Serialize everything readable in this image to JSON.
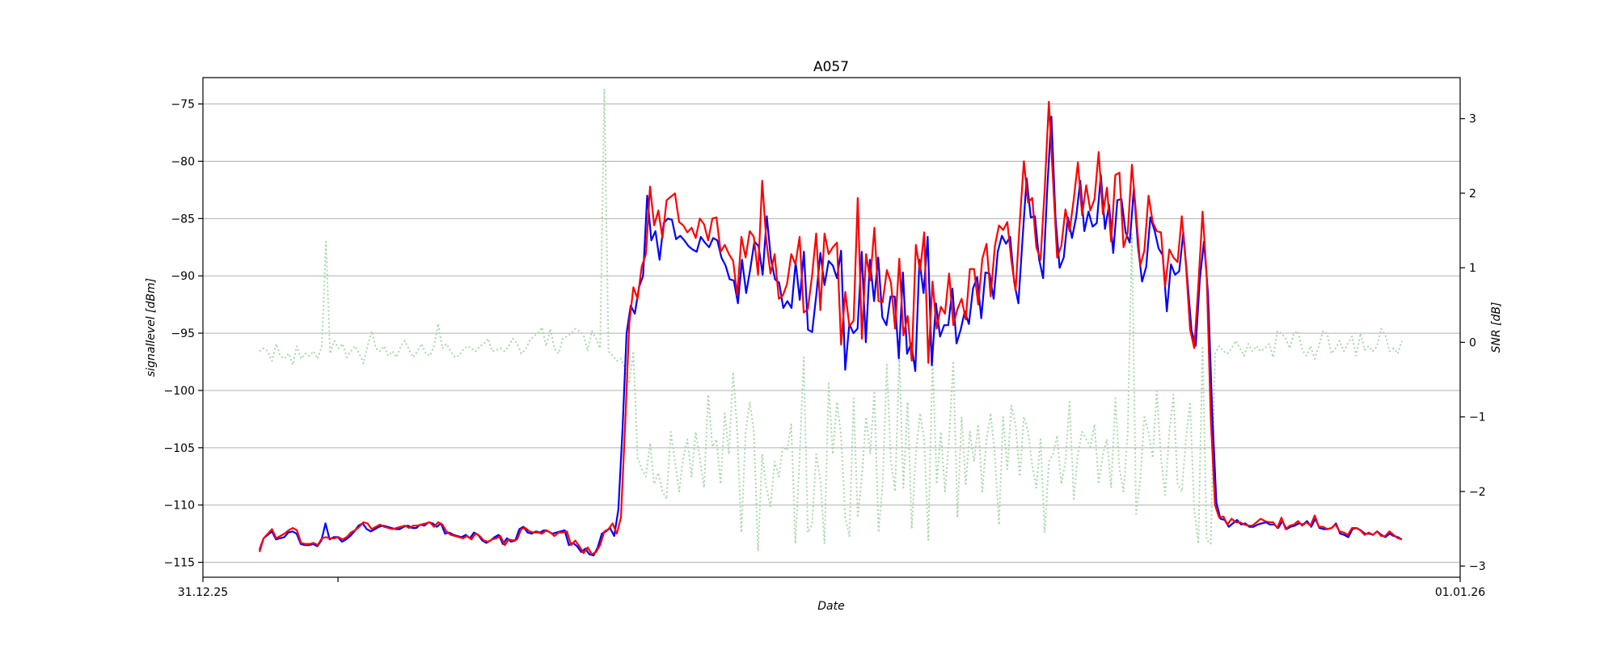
{
  "chart_data": {
    "type": "line",
    "title": "A057",
    "xlabel": "Date",
    "ylabel": "signallevel [dBm]",
    "y2label": "SNR [dB]",
    "x_tick_labels": [
      "31.12.25",
      "01.01.26"
    ],
    "ylim": [
      -116.3,
      -72.7
    ],
    "y2lim": [
      -3.15,
      3.55
    ],
    "y_ticks": [
      -115,
      -110,
      -105,
      -100,
      -95,
      -90,
      -85,
      -80,
      -75
    ],
    "y2_ticks": [
      -3,
      -2,
      -1,
      0,
      1,
      2,
      3
    ],
    "grid": "horizontal",
    "series": [
      {
        "color": "#0000ff",
        "axis": "left",
        "values": [
          -113.9,
          -112.9,
          -112.6,
          -112.3,
          -113.0,
          -112.9,
          -112.8,
          -112.4,
          -112.3,
          -112.5,
          -113.4,
          -113.5,
          -113.5,
          -113.4,
          -113.6,
          -113.1,
          -111.6,
          -113.0,
          -112.8,
          -112.8,
          -113.2,
          -113.0,
          -112.7,
          -112.3,
          -111.8,
          -111.6,
          -112.1,
          -112.3,
          -112.1,
          -111.9,
          -111.8,
          -111.9,
          -112.0,
          -112.1,
          -112.1,
          -111.9,
          -111.8,
          -112.0,
          -112.0,
          -111.7,
          -111.8,
          -111.5,
          -111.6,
          -111.9,
          -111.6,
          -112.5,
          -112.4,
          -112.6,
          -112.7,
          -112.8,
          -112.6,
          -112.9,
          -112.4,
          -112.6,
          -113.1,
          -113.3,
          -113.1,
          -112.8,
          -112.6,
          -113.4,
          -112.9,
          -113.2,
          -113.1,
          -112.1,
          -111.9,
          -112.4,
          -112.5,
          -112.3,
          -112.4,
          -112.2,
          -112.3,
          -112.5,
          -112.4,
          -112.3,
          -112.2,
          -113.5,
          -113.3,
          -113.6,
          -114.1,
          -113.8,
          -114.3,
          -114.4,
          -113.7,
          -112.5,
          -112.3,
          -112.0,
          -112.7,
          -110.4,
          -103.5,
          -95.0,
          -92.6,
          -93.3,
          -91.0,
          -90.0,
          -83.0,
          -86.9,
          -86.1,
          -88.6,
          -85.4,
          -85.0,
          -85.1,
          -86.8,
          -86.5,
          -86.9,
          -87.4,
          -87.7,
          -87.9,
          -86.6,
          -87.1,
          -87.5,
          -86.7,
          -86.9,
          -88.4,
          -89.1,
          -90.3,
          -90.4,
          -92.4,
          -88.6,
          -91.5,
          -89.4,
          -87.0,
          -87.4,
          -89.9,
          -84.8,
          -88.5,
          -90.3,
          -90.6,
          -92.8,
          -92.2,
          -92.8,
          -88.8,
          -92.1,
          -87.9,
          -94.7,
          -94.9,
          -91.7,
          -88.0,
          -90.8,
          -88.7,
          -89.1,
          -90.2,
          -87.8,
          -98.2,
          -94.2,
          -95.0,
          -94.6,
          -87.9,
          -95.8,
          -88.6,
          -92.2,
          -88.4,
          -93.6,
          -94.3,
          -91.8,
          -91.8,
          -97.2,
          -89.7,
          -96.8,
          -95.9,
          -98.3,
          -88.6,
          -91.5,
          -86.6,
          -97.8,
          -92.4,
          -95.3,
          -94.3,
          -94.3,
          -91.1,
          -95.9,
          -94.7,
          -93.1,
          -94.2,
          -91.1,
          -90.1,
          -93.7,
          -89.7,
          -89.8,
          -92.0,
          -87.9,
          -86.5,
          -87.2,
          -86.6,
          -90.6,
          -92.4,
          -86.8,
          -81.5,
          -84.9,
          -84.8,
          -88.5,
          -90.2,
          -82.4,
          -76.1,
          -84.9,
          -89.3,
          -88.4,
          -84.9,
          -86.7,
          -84.9,
          -81.7,
          -86.1,
          -84.4,
          -85.7,
          -85.4,
          -81.2,
          -85.9,
          -83.8,
          -88.0,
          -83.4,
          -83.3,
          -86.2,
          -87.1,
          -82.4,
          -87.4,
          -90.5,
          -89.2,
          -84.9,
          -86.0,
          -87.6,
          -88.2,
          -93.1,
          -89.0,
          -89.9,
          -89.6,
          -86.2,
          -90.4,
          -94.8,
          -96.1,
          -90.3,
          -87.0,
          -91.6,
          -102.0,
          -109.8,
          -111.2,
          -111.3,
          -111.9,
          -111.6,
          -111.3,
          -111.7,
          -111.6,
          -111.9,
          -111.9,
          -111.7,
          -111.6,
          -111.5,
          -111.7,
          -111.7,
          -112.0,
          -111.4,
          -112.1,
          -111.9,
          -111.8,
          -111.6,
          -111.7,
          -111.4,
          -111.9,
          -111.2,
          -112.0,
          -112.1,
          -112.1,
          -112.0,
          -111.6,
          -112.5,
          -112.6,
          -112.8,
          -112.1,
          -112.0,
          -112.2,
          -112.5,
          -112.5,
          -112.6,
          -112.3,
          -112.6,
          -112.8,
          -112.5,
          -112.7,
          -112.8,
          -113.0
        ]
      },
      {
        "color": "#ff0000",
        "axis": "left",
        "values": [
          -114.1,
          -112.9,
          -112.5,
          -112.1,
          -112.9,
          -112.7,
          -112.5,
          -112.2,
          -112.0,
          -112.2,
          -113.3,
          -113.4,
          -113.4,
          -113.3,
          -113.5,
          -112.9,
          -112.8,
          -112.9,
          -112.9,
          -112.8,
          -113.0,
          -112.8,
          -112.4,
          -112.2,
          -111.9,
          -111.5,
          -111.6,
          -112.1,
          -111.9,
          -111.7,
          -111.9,
          -112.0,
          -112.1,
          -112.0,
          -111.9,
          -111.8,
          -112.0,
          -111.8,
          -111.8,
          -111.7,
          -111.6,
          -111.5,
          -111.9,
          -111.5,
          -111.7,
          -112.3,
          -112.6,
          -112.7,
          -112.8,
          -112.9,
          -112.7,
          -113.0,
          -112.5,
          -112.7,
          -113.1,
          -113.2,
          -113.0,
          -112.9,
          -112.7,
          -113.5,
          -113.0,
          -113.1,
          -113.0,
          -112.1,
          -112.0,
          -112.3,
          -112.4,
          -112.4,
          -112.5,
          -112.2,
          -112.4,
          -112.7,
          -112.4,
          -112.4,
          -112.3,
          -113.5,
          -113.1,
          -113.6,
          -114.2,
          -113.7,
          -114.3,
          -114.1,
          -113.5,
          -112.3,
          -112.1,
          -111.6,
          -112.5,
          -111.1,
          -103.0,
          -94.2,
          -91.0,
          -92.0,
          -89.2,
          -88.1,
          -82.2,
          -85.6,
          -84.3,
          -86.7,
          -83.4,
          -83.1,
          -82.8,
          -85.3,
          -85.6,
          -86.2,
          -85.8,
          -86.7,
          -85.0,
          -85.5,
          -86.9,
          -85.0,
          -84.9,
          -87.9,
          -87.3,
          -88.1,
          -88.7,
          -91.7,
          -86.6,
          -88.4,
          -86.1,
          -86.6,
          -89.9,
          -81.7,
          -87.0,
          -89.8,
          -88.1,
          -92.0,
          -91.7,
          -90.7,
          -88.1,
          -89.0,
          -86.6,
          -93.2,
          -92.9,
          -90.0,
          -86.3,
          -93.0,
          -86.3,
          -88.1,
          -87.5,
          -87.1,
          -96.0,
          -91.4,
          -94.4,
          -93.9,
          -83.2,
          -95.5,
          -88.1,
          -90.4,
          -85.8,
          -92.2,
          -92.3,
          -89.5,
          -90.6,
          -94.6,
          -88.5,
          -95.2,
          -93.5,
          -97.4,
          -87.3,
          -89.6,
          -86.2,
          -97.6,
          -90.5,
          -94.6,
          -92.7,
          -93.3,
          -89.8,
          -94.3,
          -92.9,
          -92.0,
          -93.8,
          -89.4,
          -89.4,
          -92.5,
          -88.5,
          -87.2,
          -91.8,
          -87.4,
          -85.6,
          -86.0,
          -85.3,
          -88.7,
          -91.3,
          -85.3,
          -80.0,
          -83.6,
          -83.2,
          -87.5,
          -88.6,
          -82.5,
          -74.8,
          -81.6,
          -88.4,
          -87.4,
          -84.2,
          -86.1,
          -83.3,
          -80.1,
          -84.7,
          -82.1,
          -84.3,
          -83.3,
          -79.2,
          -84.6,
          -82.3,
          -87.0,
          -81.2,
          -81.0,
          -87.5,
          -86.2,
          -80.3,
          -84.6,
          -89.1,
          -87.8,
          -83.0,
          -85.3,
          -86.1,
          -86.2,
          -90.9,
          -87.7,
          -88.4,
          -88.8,
          -84.8,
          -89.0,
          -94.7,
          -96.3,
          -90.8,
          -84.4,
          -90.0,
          -102.5,
          -110.0,
          -111.1,
          -111.0,
          -111.7,
          -111.2,
          -111.5,
          -111.5,
          -111.7,
          -111.8,
          -111.8,
          -111.5,
          -111.2,
          -111.4,
          -111.5,
          -111.5,
          -112.0,
          -111.1,
          -112.1,
          -111.8,
          -111.7,
          -111.4,
          -111.8,
          -111.5,
          -111.8,
          -110.9,
          -111.9,
          -111.9,
          -112.1,
          -112.0,
          -111.7,
          -112.3,
          -112.4,
          -112.6,
          -112.0,
          -112.0,
          -112.2,
          -112.6,
          -112.4,
          -112.6,
          -112.3,
          -112.7,
          -112.7,
          -112.3,
          -112.6,
          -112.9,
          -113.0
        ]
      },
      {
        "color": "#a6d8a6",
        "style": "dotted",
        "axis": "right",
        "values": [
          -0.12,
          -0.08,
          -0.12,
          -0.25,
          -0.02,
          -0.18,
          -0.22,
          -0.15,
          -0.3,
          -0.05,
          -0.22,
          -0.15,
          -0.18,
          -0.12,
          -0.22,
          -0.05,
          1.35,
          -0.15,
          0.02,
          -0.08,
          -0.02,
          -0.2,
          -0.12,
          -0.05,
          -0.15,
          -0.28,
          -0.05,
          0.15,
          -0.08,
          -0.12,
          -0.05,
          -0.18,
          -0.12,
          -0.2,
          -0.05,
          0.02,
          -0.1,
          -0.2,
          -0.12,
          -0.02,
          -0.15,
          -0.18,
          -0.05,
          0.25,
          -0.08,
          -0.02,
          -0.12,
          -0.2,
          -0.18,
          -0.1,
          -0.05,
          -0.08,
          -0.12,
          -0.05,
          -0.02,
          0.05,
          -0.12,
          -0.1,
          -0.08,
          -0.12,
          -0.05,
          0.05,
          -0.02,
          -0.15,
          -0.1,
          0.02,
          0.08,
          0.12,
          0.2,
          -0.05,
          0.18,
          -0.08,
          -0.15,
          0.05,
          0.08,
          0.12,
          0.18,
          0.15,
          0.1,
          -0.12,
          0.15,
          0.05,
          -0.08,
          3.4,
          -0.12,
          -0.18,
          -0.25,
          -0.22,
          -0.35,
          -0.55,
          -0.12,
          -1.55,
          -1.7,
          -1.8,
          -1.35,
          -1.9,
          -1.75,
          -2.0,
          -2.1,
          -1.2,
          -1.6,
          -2.0,
          -1.55,
          -1.3,
          -1.8,
          -1.2,
          -1.55,
          -1.95,
          -0.7,
          -1.4,
          -1.3,
          -1.9,
          -0.95,
          -1.5,
          -0.4,
          -1.2,
          -2.55,
          -1.2,
          -0.8,
          -1.2,
          -2.8,
          -1.5,
          -1.95,
          -2.2,
          -1.6,
          -1.8,
          -1.4,
          -1.45,
          -1.1,
          -2.7,
          -1.55,
          -0.2,
          -2.55,
          -2.45,
          -1.5,
          -1.85,
          -2.7,
          -0.55,
          -1.5,
          -0.8,
          -1.25,
          -2.35,
          -2.6,
          -0.75,
          -2.35,
          -1.8,
          -1.0,
          -1.5,
          -0.65,
          -2.55,
          -1.9,
          -0.3,
          -1.6,
          -2.0,
          -0.2,
          -1.95,
          -0.8,
          -2.5,
          -1.5,
          -0.95,
          -1.3,
          -2.65,
          -0.2,
          -1.9,
          -1.2,
          -2.0,
          -1.3,
          -0.25,
          -2.35,
          -1.0,
          -1.9,
          -1.2,
          -1.6,
          -1.1,
          -2.0,
          -1.3,
          -0.95,
          -1.5,
          -2.45,
          -1.0,
          -1.7,
          -0.85,
          -1.1,
          -1.8,
          -1.0,
          -1.2,
          -1.65,
          -1.95,
          -1.3,
          -2.55,
          -1.6,
          -1.5,
          -1.25,
          -1.9,
          -1.6,
          -0.8,
          -2.1,
          -1.5,
          -1.2,
          -1.3,
          -1.4,
          -1.1,
          -1.9,
          -1.5,
          -1.3,
          -1.95,
          -0.75,
          -1.7,
          -2.0,
          -1.2,
          1.45,
          -2.3,
          -1.85,
          -1.0,
          -1.2,
          -1.55,
          -0.65,
          -1.55,
          -2.05,
          -1.2,
          -0.7,
          -1.9,
          -2.0,
          -1.3,
          -0.8,
          -2.25,
          -2.7,
          -0.05,
          -2.65,
          -2.7,
          -0.15,
          -0.05,
          -0.12,
          -0.15,
          -0.08,
          0.02,
          -0.08,
          -0.18,
          -0.02,
          -0.12,
          -0.05,
          -0.12,
          -0.08,
          -0.02,
          -0.2,
          0.15,
          0.12,
          0.05,
          -0.08,
          0.12,
          0.15,
          -0.1,
          -0.18,
          -0.05,
          -0.22,
          -0.05,
          0.15,
          0.12,
          -0.15,
          -0.08,
          0.02,
          -0.12,
          -0.02,
          0.08,
          -0.18,
          0.12,
          -0.1,
          -0.05,
          -0.12,
          -0.05,
          0.18,
          0.1,
          -0.12,
          -0.08,
          -0.15,
          0.02
        ]
      }
    ]
  }
}
